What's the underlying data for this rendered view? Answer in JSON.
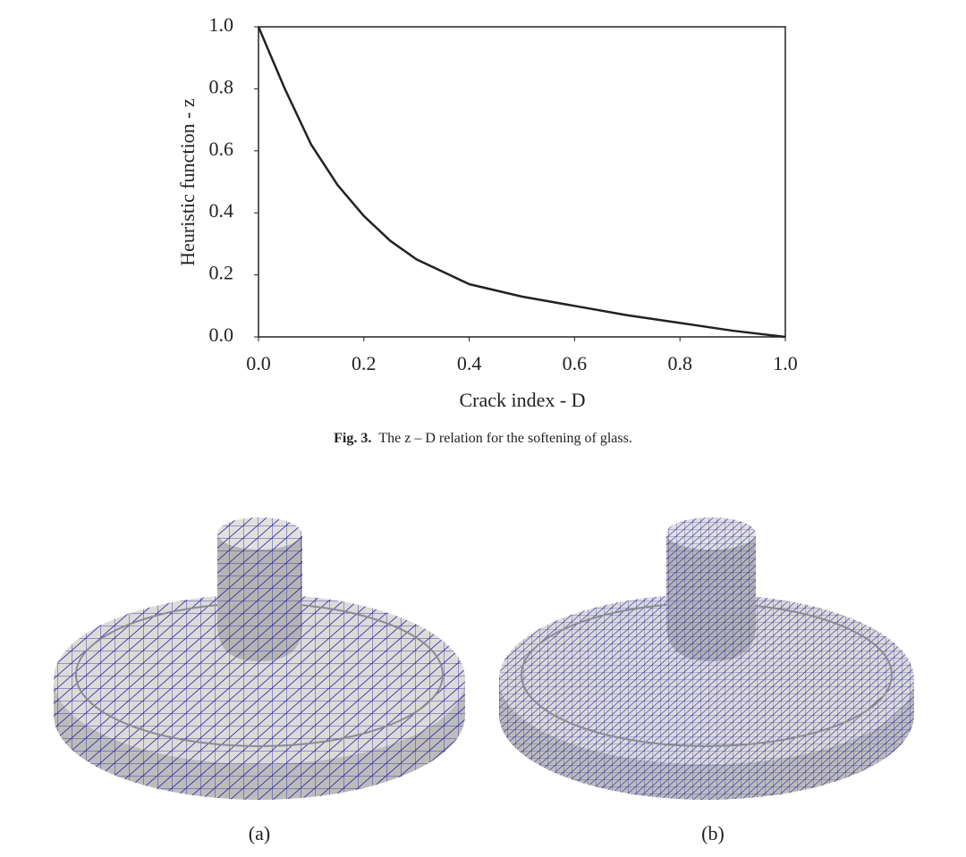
{
  "chart_data": {
    "type": "line",
    "xlabel": "Crack index - D",
    "ylabel": "Heuristic function - z",
    "x": [
      0,
      0.025,
      0.05,
      0.1,
      0.15,
      0.2,
      0.25,
      0.3,
      0.4,
      0.5,
      0.6,
      0.7,
      0.8,
      0.9,
      1.0
    ],
    "series": [
      {
        "color": "#222222",
        "values": [
          1,
          0.9,
          0.8,
          0.62,
          0.49,
          0.39,
          0.31,
          0.25,
          0.17,
          0.13,
          0.1,
          0.07,
          0.045,
          0.02,
          0
        ]
      }
    ],
    "xlim": [
      0,
      1
    ],
    "ylim": [
      0,
      1
    ],
    "xticks": [
      {
        "value": 0,
        "label": "0.0"
      },
      0.2,
      0.4,
      0.6,
      0.8,
      {
        "value": 1,
        "label": "1.0"
      }
    ],
    "yticks": [
      {
        "value": 0,
        "label": "0.0"
      },
      0.2,
      0.4,
      0.6,
      0.8,
      {
        "value": 1,
        "label": "1.0"
      }
    ],
    "grid": false
  },
  "caption": {
    "label": "Fig. 3.",
    "text": "The z – D relation for the softening of glass."
  },
  "panels": [
    {
      "label": "(a)"
    },
    {
      "label": "(b)"
    }
  ]
}
